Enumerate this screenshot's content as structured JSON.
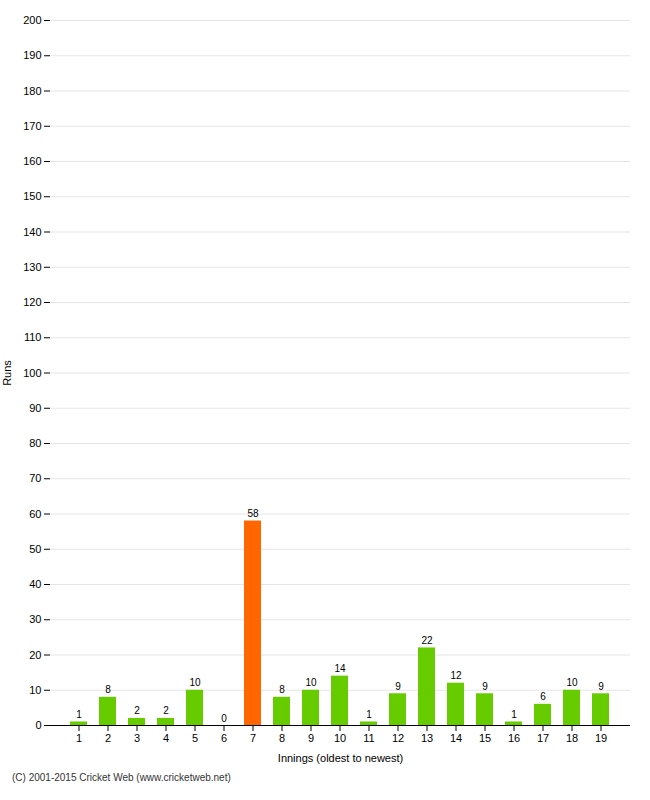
{
  "chart_data": {
    "type": "bar",
    "xlabel": "Innings (oldest to newest)",
    "ylabel": "Runs",
    "categories": [
      1,
      2,
      3,
      4,
      5,
      6,
      7,
      8,
      9,
      10,
      11,
      12,
      13,
      14,
      15,
      16,
      17,
      18,
      19
    ],
    "values": [
      1,
      8,
      2,
      2,
      10,
      0,
      58,
      8,
      10,
      14,
      1,
      9,
      22,
      12,
      9,
      1,
      6,
      10,
      9
    ],
    "colors": [
      "#66cc00",
      "#66cc00",
      "#66cc00",
      "#66cc00",
      "#66cc00",
      "#66cc00",
      "#ff6600",
      "#66cc00",
      "#66cc00",
      "#66cc00",
      "#66cc00",
      "#66cc00",
      "#66cc00",
      "#66cc00",
      "#66cc00",
      "#66cc00",
      "#66cc00",
      "#66cc00",
      "#66cc00"
    ],
    "ylim": [
      0,
      200
    ],
    "yticks": [
      0,
      10,
      20,
      30,
      40,
      50,
      60,
      70,
      80,
      90,
      100,
      110,
      120,
      130,
      140,
      150,
      160,
      170,
      180,
      190,
      200
    ],
    "grid": true,
    "data_labels": true,
    "annotations": [
      "(C) 2001-2015 Cricket Web (www.cricketweb.net)"
    ]
  }
}
